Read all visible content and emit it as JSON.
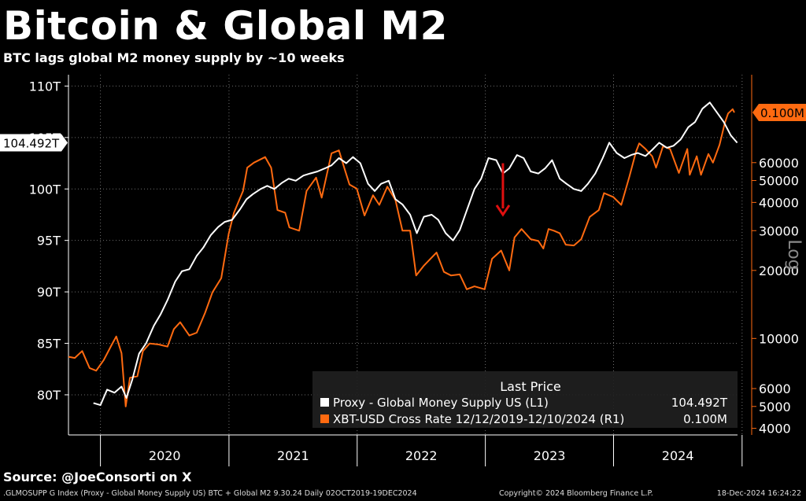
{
  "header": {
    "title": "Bitcoin & Global M2",
    "subtitle": "BTC lags global M2 money supply by ~10 weeks"
  },
  "source": "Source: @JoeConsorti on X",
  "footer": {
    "left": ".GLMOSUPP G Index (Proxy - Global Money Supply US) BTC + Global M2 9.30.24  Daily 02OCT2019-19DEC2024",
    "copyright": "Copyright© 2024 Bloomberg Finance L.P.",
    "timestamp": "18-Dec-2024 16:24:22"
  },
  "chart_data": {
    "type": "line",
    "x_range": [
      "2019-10-02",
      "2024-12-19"
    ],
    "x_tick_labels": [
      "2020",
      "2021",
      "2022",
      "2023",
      "2024"
    ],
    "left_axis": {
      "tick_labels": [
        "80T",
        "85T",
        "90T",
        "95T",
        "100T",
        "105T",
        "110T"
      ],
      "ticks": [
        80,
        85,
        90,
        95,
        100,
        105,
        110
      ],
      "range": [
        76.1,
        111.1
      ],
      "last_value_label": "104.492T",
      "last_value": 104.492
    },
    "right_axis": {
      "scale": "log",
      "label": "Log",
      "tick_labels": [
        "4000",
        "5000",
        "6000",
        "10000",
        "20000",
        "30000",
        "40000",
        "50000",
        "60000"
      ],
      "ticks": [
        4000,
        5000,
        6000,
        10000,
        20000,
        30000,
        40000,
        50000,
        60000
      ],
      "range": [
        3740,
        147000
      ],
      "last_value_label": "0.100M",
      "last_value": 100000
    },
    "legend": {
      "title": "Last Price",
      "placement": "bottom-right",
      "entries": [
        {
          "label": "Proxy - Global Money Supply US  (L1)",
          "value": "104.492T",
          "color": "#ffffff"
        },
        {
          "label": "XBT-USD Cross Rate 12/12/2019-12/10/2024  (R1)",
          "value": "0.100M",
          "color": "#ff6a10"
        }
      ]
    },
    "annotation": {
      "type": "arrow",
      "color": "#e01010",
      "x": "2023-02-20",
      "y_from": 102.5,
      "y_to": 97.5
    },
    "grid": true,
    "series": [
      {
        "name": "Proxy - Global Money Supply US",
        "axis": "left",
        "color": "#ffffff",
        "points": [
          [
            "2019-12-12",
            79.2
          ],
          [
            "2020-01-01",
            79.0
          ],
          [
            "2020-01-20",
            80.5
          ],
          [
            "2020-02-10",
            80.2
          ],
          [
            "2020-03-01",
            80.8
          ],
          [
            "2020-03-15",
            79.7
          ],
          [
            "2020-04-01",
            81.5
          ],
          [
            "2020-04-20",
            84.0
          ],
          [
            "2020-05-10",
            85.0
          ],
          [
            "2020-06-01",
            86.7
          ],
          [
            "2020-06-20",
            87.8
          ],
          [
            "2020-07-10",
            89.2
          ],
          [
            "2020-08-01",
            91.0
          ],
          [
            "2020-08-20",
            92.0
          ],
          [
            "2020-09-10",
            92.2
          ],
          [
            "2020-10-01",
            93.5
          ],
          [
            "2020-10-20",
            94.3
          ],
          [
            "2020-11-10",
            95.5
          ],
          [
            "2020-12-01",
            96.3
          ],
          [
            "2020-12-20",
            96.8
          ],
          [
            "2021-01-10",
            97.0
          ],
          [
            "2021-02-01",
            98.0
          ],
          [
            "2021-02-20",
            99.0
          ],
          [
            "2021-03-10",
            99.5
          ],
          [
            "2021-04-01",
            100.0
          ],
          [
            "2021-04-20",
            100.3
          ],
          [
            "2021-05-10",
            100.0
          ],
          [
            "2021-06-01",
            100.6
          ],
          [
            "2021-06-20",
            101.0
          ],
          [
            "2021-07-10",
            100.8
          ],
          [
            "2021-08-01",
            101.3
          ],
          [
            "2021-08-20",
            101.5
          ],
          [
            "2021-09-10",
            101.7
          ],
          [
            "2021-10-01",
            102.0
          ],
          [
            "2021-10-20",
            102.3
          ],
          [
            "2021-11-10",
            103.0
          ],
          [
            "2021-12-01",
            102.5
          ],
          [
            "2021-12-20",
            103.1
          ],
          [
            "2022-01-10",
            102.5
          ],
          [
            "2022-02-01",
            100.5
          ],
          [
            "2022-02-20",
            99.8
          ],
          [
            "2022-03-10",
            100.5
          ],
          [
            "2022-04-01",
            100.8
          ],
          [
            "2022-04-20",
            99.0
          ],
          [
            "2022-05-10",
            98.5
          ],
          [
            "2022-06-01",
            97.5
          ],
          [
            "2022-06-20",
            95.7
          ],
          [
            "2022-07-10",
            97.3
          ],
          [
            "2022-08-01",
            97.5
          ],
          [
            "2022-08-20",
            97.0
          ],
          [
            "2022-09-10",
            95.7
          ],
          [
            "2022-10-01",
            95.0
          ],
          [
            "2022-10-20",
            96.0
          ],
          [
            "2022-11-10",
            98.0
          ],
          [
            "2022-12-01",
            100.0
          ],
          [
            "2022-12-20",
            101.0
          ],
          [
            "2023-01-10",
            103.0
          ],
          [
            "2023-02-01",
            102.8
          ],
          [
            "2023-02-20",
            101.5
          ],
          [
            "2023-03-10",
            102.0
          ],
          [
            "2023-04-01",
            103.3
          ],
          [
            "2023-04-20",
            103.0
          ],
          [
            "2023-05-10",
            101.7
          ],
          [
            "2023-06-01",
            101.5
          ],
          [
            "2023-06-20",
            102.0
          ],
          [
            "2023-07-10",
            102.8
          ],
          [
            "2023-08-01",
            101.0
          ],
          [
            "2023-08-20",
            100.5
          ],
          [
            "2023-09-10",
            100.0
          ],
          [
            "2023-10-01",
            99.8
          ],
          [
            "2023-10-20",
            100.5
          ],
          [
            "2023-11-10",
            101.5
          ],
          [
            "2023-12-01",
            103.0
          ],
          [
            "2023-12-20",
            104.5
          ],
          [
            "2024-01-10",
            103.5
          ],
          [
            "2024-02-01",
            103.0
          ],
          [
            "2024-02-20",
            103.3
          ],
          [
            "2024-03-10",
            103.5
          ],
          [
            "2024-04-01",
            103.2
          ],
          [
            "2024-04-20",
            103.8
          ],
          [
            "2024-05-10",
            104.5
          ],
          [
            "2024-06-01",
            104.0
          ],
          [
            "2024-06-20",
            104.2
          ],
          [
            "2024-07-10",
            104.8
          ],
          [
            "2024-08-01",
            106.0
          ],
          [
            "2024-08-20",
            106.5
          ],
          [
            "2024-09-10",
            107.8
          ],
          [
            "2024-10-01",
            108.4
          ],
          [
            "2024-10-20",
            107.5
          ],
          [
            "2024-11-10",
            106.5
          ],
          [
            "2024-11-30",
            105.2
          ],
          [
            "2024-12-10",
            104.8
          ],
          [
            "2024-12-18",
            104.492
          ]
        ]
      },
      {
        "name": "XBT-USD Cross Rate",
        "axis": "right",
        "color": "#ff6a10",
        "points": [
          [
            "2019-10-02",
            8300
          ],
          [
            "2019-10-20",
            8200
          ],
          [
            "2019-11-10",
            8800
          ],
          [
            "2019-12-01",
            7400
          ],
          [
            "2019-12-20",
            7200
          ],
          [
            "2020-01-10",
            8000
          ],
          [
            "2020-02-01",
            9300
          ],
          [
            "2020-02-15",
            10200
          ],
          [
            "2020-03-01",
            8600
          ],
          [
            "2020-03-13",
            5000
          ],
          [
            "2020-03-25",
            6700
          ],
          [
            "2020-04-15",
            6800
          ],
          [
            "2020-05-01",
            8800
          ],
          [
            "2020-05-20",
            9500
          ],
          [
            "2020-06-15",
            9400
          ],
          [
            "2020-07-10",
            9200
          ],
          [
            "2020-07-28",
            11000
          ],
          [
            "2020-08-15",
            11800
          ],
          [
            "2020-09-10",
            10300
          ],
          [
            "2020-10-01",
            10600
          ],
          [
            "2020-10-25",
            13000
          ],
          [
            "2020-11-15",
            16000
          ],
          [
            "2020-12-10",
            18500
          ],
          [
            "2020-12-31",
            29000
          ],
          [
            "2021-01-15",
            36000
          ],
          [
            "2021-02-10",
            45000
          ],
          [
            "2021-02-22",
            57000
          ],
          [
            "2021-03-13",
            60000
          ],
          [
            "2021-04-14",
            63500
          ],
          [
            "2021-05-01",
            57000
          ],
          [
            "2021-05-19",
            37000
          ],
          [
            "2021-06-10",
            36000
          ],
          [
            "2021-06-22",
            31000
          ],
          [
            "2021-07-20",
            30000
          ],
          [
            "2021-08-10",
            45000
          ],
          [
            "2021-09-06",
            51500
          ],
          [
            "2021-09-22",
            42000
          ],
          [
            "2021-10-20",
            66000
          ],
          [
            "2021-11-10",
            68000
          ],
          [
            "2021-11-25",
            57000
          ],
          [
            "2021-12-10",
            48000
          ],
          [
            "2021-12-31",
            46000
          ],
          [
            "2022-01-22",
            35000
          ],
          [
            "2022-02-15",
            43000
          ],
          [
            "2022-03-05",
            39000
          ],
          [
            "2022-03-28",
            47000
          ],
          [
            "2022-04-20",
            41000
          ],
          [
            "2022-05-10",
            30000
          ],
          [
            "2022-06-01",
            30000
          ],
          [
            "2022-06-18",
            19000
          ],
          [
            "2022-07-10",
            21000
          ],
          [
            "2022-08-15",
            24000
          ],
          [
            "2022-09-05",
            19700
          ],
          [
            "2022-09-25",
            19000
          ],
          [
            "2022-10-20",
            19200
          ],
          [
            "2022-11-09",
            16500
          ],
          [
            "2022-12-01",
            17000
          ],
          [
            "2022-12-30",
            16500
          ],
          [
            "2023-01-20",
            22500
          ],
          [
            "2023-02-15",
            24500
          ],
          [
            "2023-03-10",
            20000
          ],
          [
            "2023-03-25",
            28000
          ],
          [
            "2023-04-14",
            30500
          ],
          [
            "2023-05-10",
            27500
          ],
          [
            "2023-06-01",
            27000
          ],
          [
            "2023-06-15",
            25000
          ],
          [
            "2023-06-30",
            30500
          ],
          [
            "2023-07-15",
            30000
          ],
          [
            "2023-08-01",
            29200
          ],
          [
            "2023-08-18",
            26000
          ],
          [
            "2023-09-10",
            25800
          ],
          [
            "2023-10-01",
            27500
          ],
          [
            "2023-10-25",
            34500
          ],
          [
            "2023-11-20",
            37000
          ],
          [
            "2023-12-05",
            44000
          ],
          [
            "2023-12-31",
            42300
          ],
          [
            "2024-01-23",
            39000
          ],
          [
            "2024-02-15",
            52000
          ],
          [
            "2024-03-05",
            67000
          ],
          [
            "2024-03-14",
            73000
          ],
          [
            "2024-04-01",
            69000
          ],
          [
            "2024-04-20",
            64000
          ],
          [
            "2024-05-01",
            57000
          ],
          [
            "2024-05-21",
            71000
          ],
          [
            "2024-06-10",
            69000
          ],
          [
            "2024-07-05",
            54000
          ],
          [
            "2024-07-29",
            69000
          ],
          [
            "2024-08-05",
            53000
          ],
          [
            "2024-08-25",
            64000
          ],
          [
            "2024-09-06",
            53000
          ],
          [
            "2024-09-27",
            65500
          ],
          [
            "2024-10-10",
            60000
          ],
          [
            "2024-10-29",
            72000
          ],
          [
            "2024-11-13",
            90000
          ],
          [
            "2024-11-22",
            99000
          ],
          [
            "2024-12-05",
            103500
          ],
          [
            "2024-12-10",
            100000
          ]
        ]
      }
    ]
  }
}
